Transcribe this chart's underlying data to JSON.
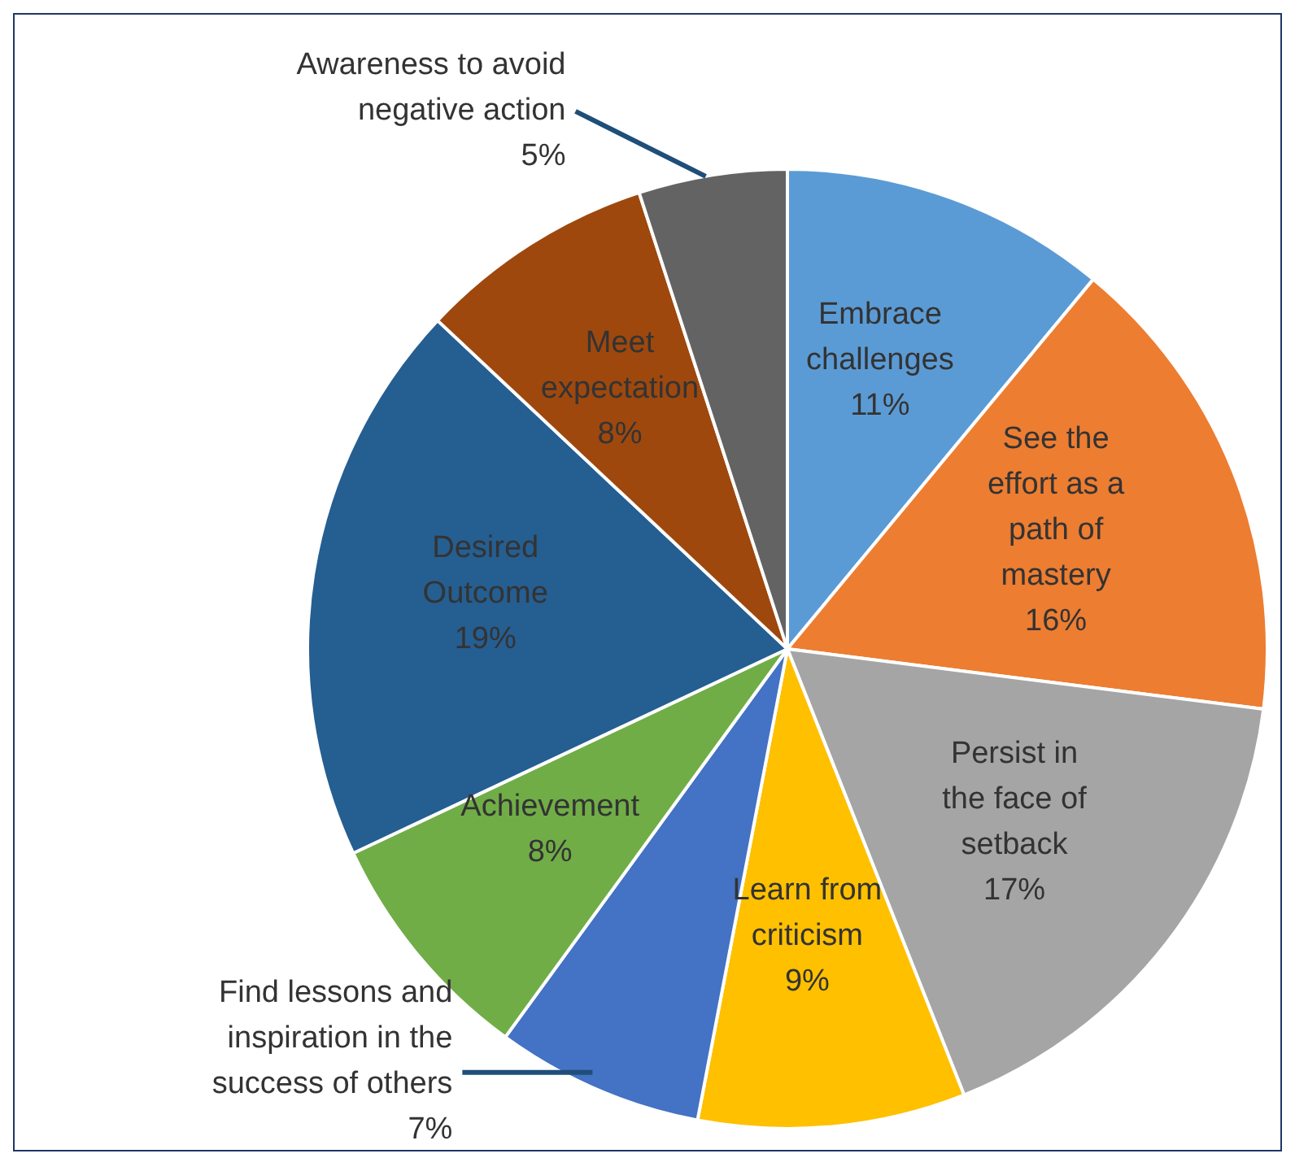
{
  "chart_data": {
    "type": "pie",
    "categories": [
      "Embrace challenges",
      "See the effort as a path of mastery",
      "Persist in the face of setback",
      "Learn from criticism",
      "Find lessons and inspiration in the success of others",
      "Achievement",
      "Desired Outcome",
      "Meet expectation",
      "Awareness to avoid negative action"
    ],
    "values": [
      11,
      16,
      17,
      9,
      7,
      8,
      19,
      8,
      5
    ],
    "value_labels": [
      "11%",
      "16%",
      "17%",
      "9%",
      "7%",
      "8%",
      "19%",
      "8%",
      "5%"
    ],
    "colors": [
      "#5b9bd5",
      "#ed7d31",
      "#a5a5a5",
      "#ffc000",
      "#4472c4",
      "#70ad47",
      "#255e91",
      "#9e480e",
      "#636363"
    ],
    "legend": false
  }
}
